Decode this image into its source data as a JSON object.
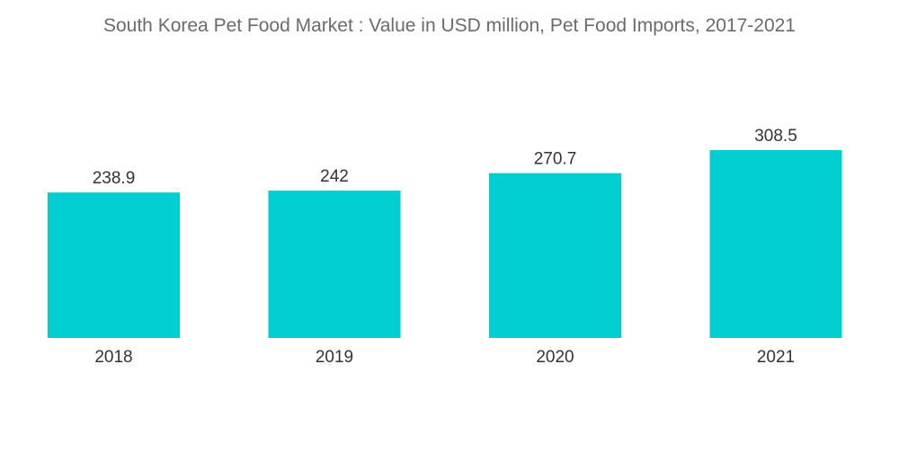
{
  "chart_data": {
    "type": "bar",
    "title": "South Korea Pet Food Market : Value in USD million, Pet Food Imports, 2017-2021",
    "categories": [
      "2018",
      "2019",
      "2020",
      "2021"
    ],
    "values": [
      238.9,
      242,
      270.7,
      308.5
    ],
    "value_labels": [
      "238.9",
      "242",
      "270.7",
      "308.5"
    ],
    "xlabel": "",
    "ylabel": "",
    "ylim": [
      0,
      308.5
    ],
    "grid": false,
    "legend": "none",
    "bar_color": "#00CED1"
  }
}
